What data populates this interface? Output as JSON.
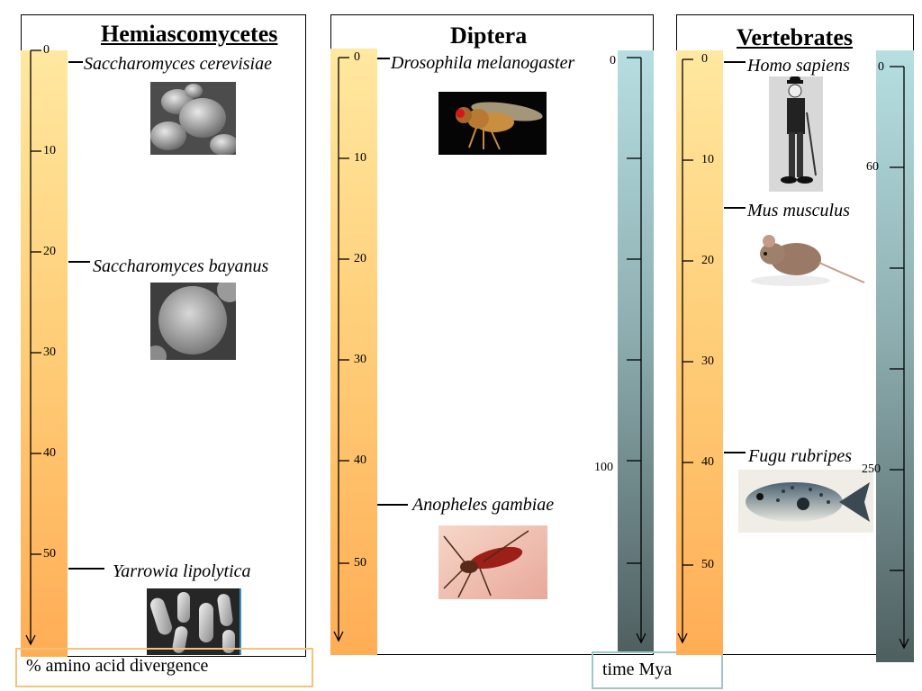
{
  "panels": [
    {
      "title": "Hemiascomycetes",
      "species": [
        {
          "name": "Saccharomyces cerevisiae",
          "divergence": 0,
          "image": "yeast-cells-photo"
        },
        {
          "name": "Saccharomyces bayanus",
          "divergence": 20,
          "image": "yeast-cell-photo"
        },
        {
          "name": "Yarrowia lipolytica",
          "divergence": 50,
          "image": "yarrowia-cells-photo"
        }
      ]
    },
    {
      "title": "Diptera",
      "species": [
        {
          "name": "Drosophila melanogaster",
          "divergence": 0,
          "image": "fruit-fly-photo"
        },
        {
          "name": "Anopheles gambiae",
          "divergence": 44,
          "image": "mosquito-photo"
        }
      ],
      "time_bar": {
        "labels": [
          "0",
          "100"
        ]
      }
    },
    {
      "title": "Vertebrates",
      "species": [
        {
          "name": "Homo sapiens",
          "divergence": 0,
          "image": "human-photo"
        },
        {
          "name": "Mus musculus",
          "divergence": 15,
          "image": "mouse-photo"
        },
        {
          "name": "Fugu rubripes",
          "divergence": 39,
          "image": "pufferfish-photo"
        }
      ],
      "time_bar": {
        "labels": [
          "0",
          "60",
          "250"
        ]
      }
    }
  ],
  "divergence_ticks": [
    "0",
    "10",
    "20",
    "30",
    "40",
    "50"
  ],
  "captions": {
    "divergence": "% amino acid divergence",
    "time": "time Mya"
  },
  "colors": {
    "divergence_bar": "#ffcf7a",
    "time_bar": "#8fb0b2",
    "divergence_caption_border": "#f5c27a",
    "time_caption_border": "#9cc7cb"
  }
}
